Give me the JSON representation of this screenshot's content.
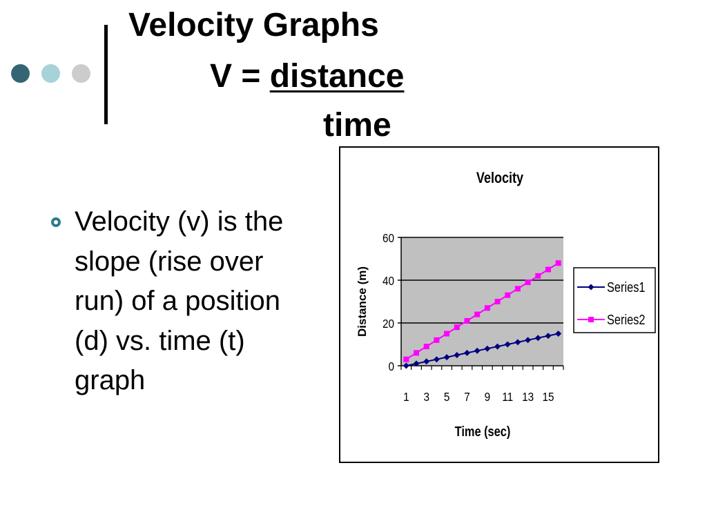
{
  "slide": {
    "title_line1": "Velocity Graphs",
    "formula_lhs": "V = ",
    "formula_numerator": "distance",
    "formula_denominator": "time",
    "bullet_text": "Velocity (v) is the slope (rise over run) of a position (d) vs. time (t) graph"
  },
  "colors": {
    "dot1": "#336672",
    "dot2": "#a6d3d8",
    "dot3": "#cccccc",
    "accent_bar": "#000000",
    "bullet": "#2f7b8e",
    "plot_background": "#c0c0c0",
    "series1": "#000080",
    "series2": "#ff00ff"
  },
  "chart_data": {
    "type": "line",
    "title": "Velocity",
    "xlabel": "Time (sec)",
    "ylabel": "Distance (m)",
    "categories": [
      1,
      2,
      3,
      4,
      5,
      6,
      7,
      8,
      9,
      10,
      11,
      12,
      13,
      14,
      15,
      16
    ],
    "x_tick_labels": [
      "1",
      "3",
      "5",
      "7",
      "9",
      "11",
      "13",
      "15"
    ],
    "y_tick_labels": [
      "0",
      "20",
      "40",
      "60"
    ],
    "ylim": [
      0,
      60
    ],
    "grid": "horizontal",
    "legend_position": "right",
    "series": [
      {
        "name": "Series1",
        "marker": "diamond",
        "values": [
          0,
          1,
          2,
          3,
          4,
          5,
          6,
          7,
          8,
          9,
          10,
          11,
          12,
          13,
          14,
          15
        ]
      },
      {
        "name": "Series2",
        "marker": "square",
        "values": [
          3,
          6,
          9,
          12,
          15,
          18,
          21,
          24,
          27,
          30,
          33,
          36,
          39,
          42,
          45,
          48
        ]
      }
    ]
  }
}
